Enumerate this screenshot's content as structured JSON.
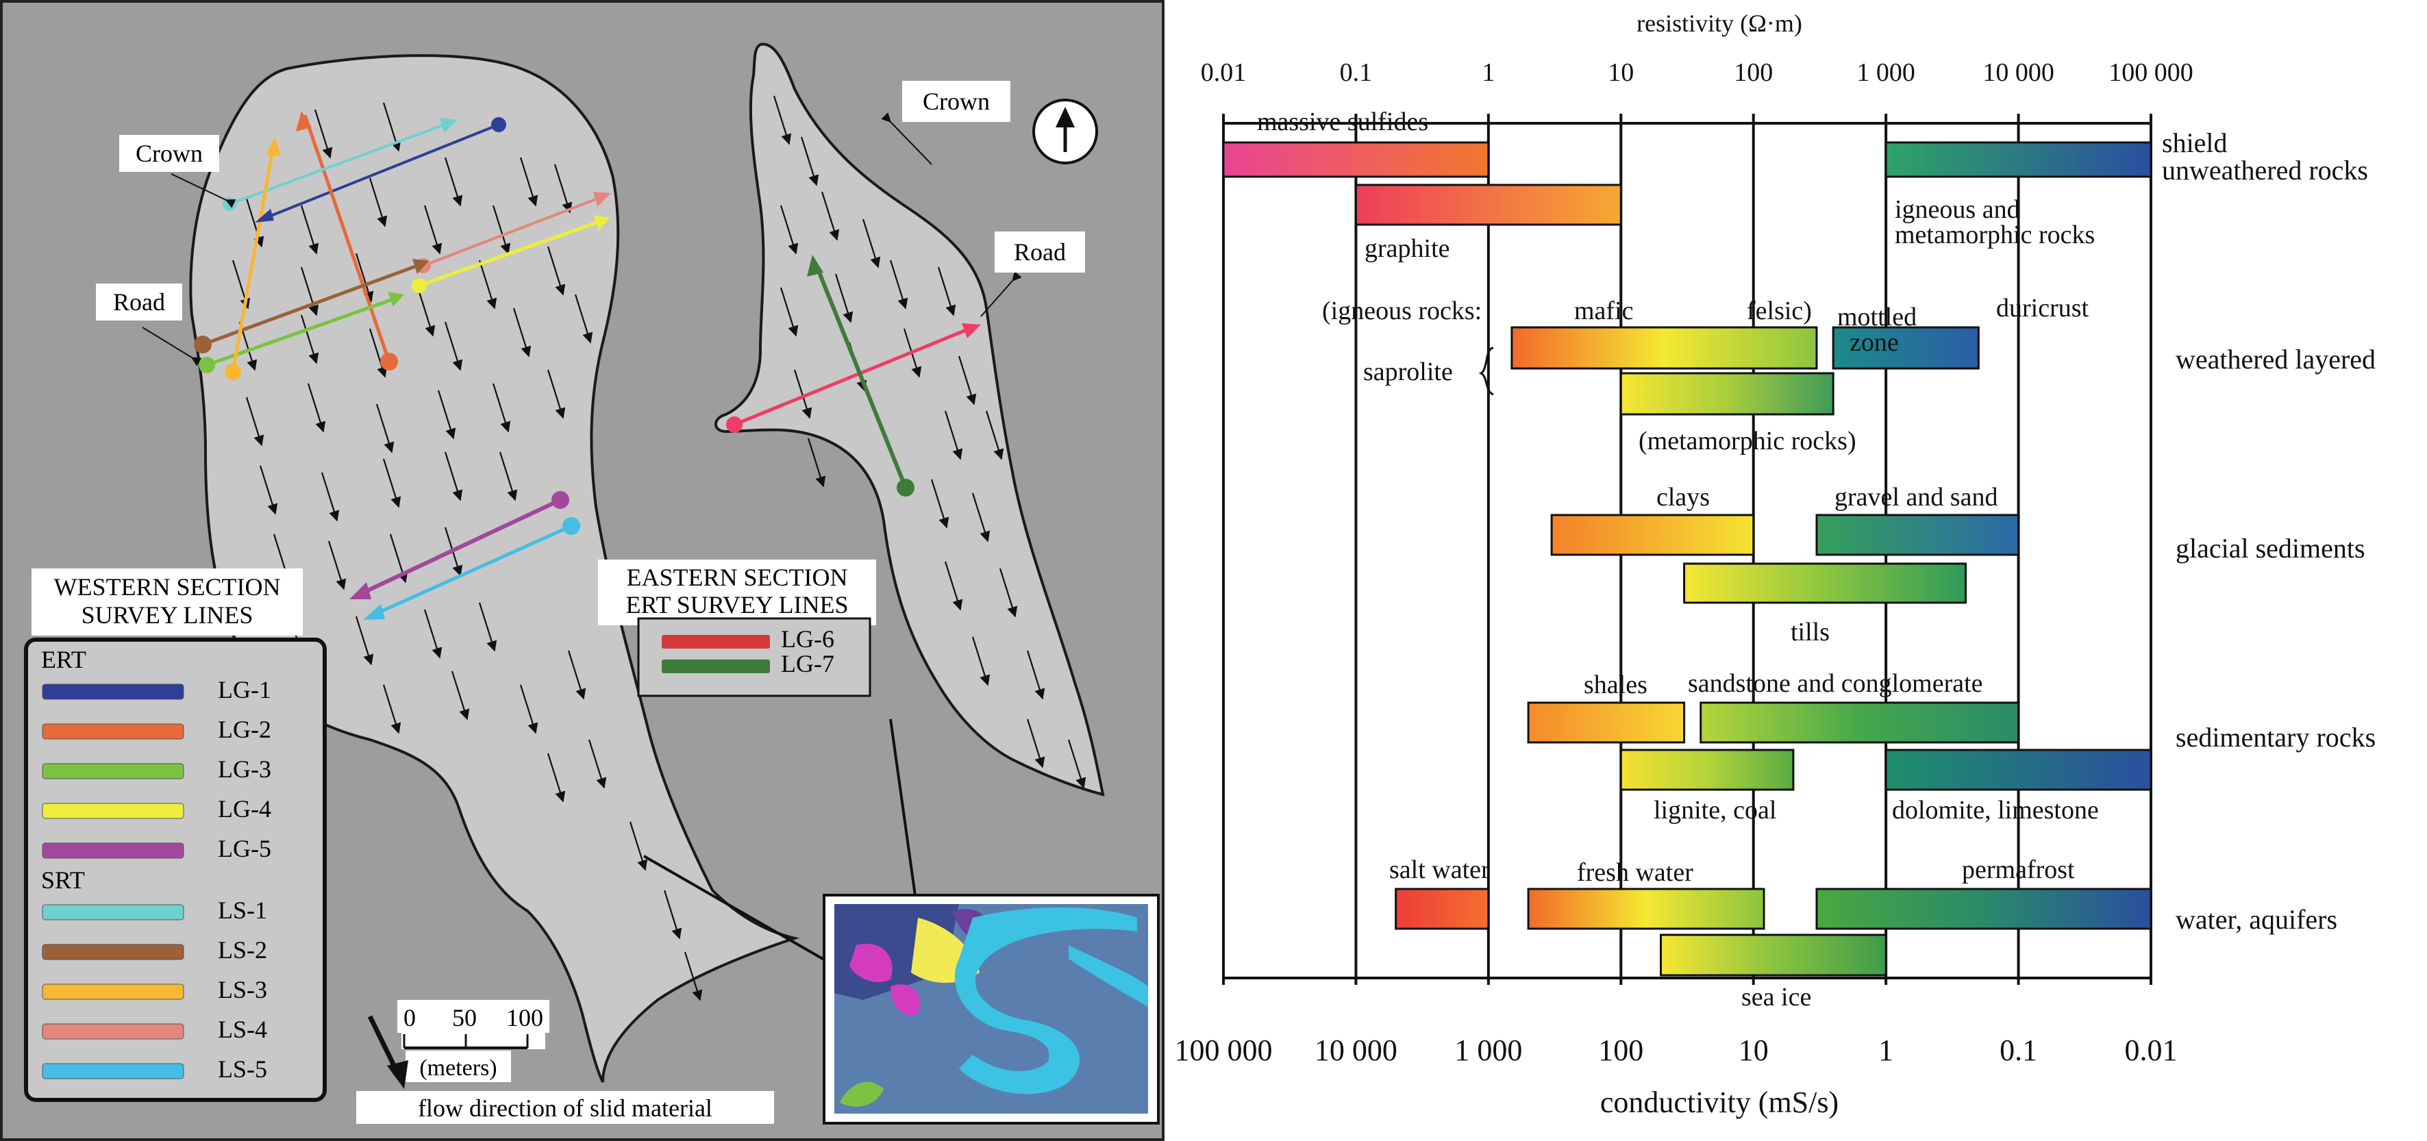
{
  "map": {
    "labels": [
      {
        "id": "crown-west",
        "text": "Crown"
      },
      {
        "id": "road-west",
        "text": "Road"
      },
      {
        "id": "crown-east",
        "text": "Crown"
      },
      {
        "id": "road-east",
        "text": "Road"
      }
    ],
    "west_legend": {
      "title_lines": [
        "WESTERN SECTION",
        "SURVEY LINES"
      ],
      "groups": [
        {
          "name": "ERT",
          "items": [
            {
              "label": "LG-1",
              "color": "#2e3f99"
            },
            {
              "label": "LG-2",
              "color": "#e8693a"
            },
            {
              "label": "LG-3",
              "color": "#7cc242"
            },
            {
              "label": "LG-4",
              "color": "#eded3c"
            },
            {
              "label": "LG-5",
              "color": "#a3479b"
            }
          ]
        },
        {
          "name": "SRT",
          "items": [
            {
              "label": "LS-1",
              "color": "#6fd0d0"
            },
            {
              "label": "LS-2",
              "color": "#9b6137"
            },
            {
              "label": "LS-3",
              "color": "#f7b733"
            },
            {
              "label": "LS-4",
              "color": "#e5867c"
            },
            {
              "label": "LS-5",
              "color": "#45bde5"
            }
          ]
        }
      ]
    },
    "east_legend": {
      "title_lines": [
        "EASTERN SECTION",
        "ERT SURVEY LINES"
      ],
      "items": [
        {
          "label": "LG-6",
          "color": "#d33a3a"
        },
        {
          "label": "LG-7",
          "color": "#3f7b3a"
        }
      ]
    },
    "scale": {
      "ticks": [
        "0",
        "50",
        "100"
      ],
      "unit": "(meters)"
    },
    "flow_label": "flow direction of slid material",
    "north_icon": "north-arrow-icon",
    "inset_icon": "location-inset-map"
  },
  "chart_data": {
    "type": "range-bar",
    "top_axis": {
      "label": "resistivity (Ω·m)",
      "ticks": [
        "0.01",
        "0.1",
        "1",
        "10",
        "100",
        "1 000",
        "10 000",
        "100 000"
      ],
      "range": [
        0.01,
        100000
      ],
      "scale": "log"
    },
    "bottom_axis": {
      "label": "conductivity (mS/s)",
      "ticks": [
        "100 000",
        "10 000",
        "1 000",
        "100",
        "10",
        "1",
        "0.1",
        "0.01"
      ],
      "range": [
        100000,
        0.01
      ],
      "scale": "log"
    },
    "categories": [
      "shield unweathered rocks",
      "weathered layered",
      "glacial sediments",
      "sedimentary rocks",
      "water, aquifers"
    ],
    "category_labels": [
      {
        "text": [
          "shield",
          "unweathered rocks"
        ]
      },
      {
        "text": [
          "weathered layered"
        ]
      },
      {
        "text": [
          "glacial sediments"
        ]
      },
      {
        "text": [
          "sedimentary rocks"
        ]
      },
      {
        "text": [
          "water, aquifers"
        ]
      }
    ],
    "bars": [
      {
        "name": "massive sulfides",
        "range": [
          0.01,
          1
        ],
        "colors": [
          "#e94592",
          "#f2762e"
        ]
      },
      {
        "name": "graphite",
        "range": [
          0.1,
          10
        ],
        "colors": [
          "#ee3d5a",
          "#f6a832"
        ]
      },
      {
        "name": "igneous and metamorphic rocks",
        "range": [
          1000,
          100000
        ],
        "colors": [
          "#2fa366",
          "#2a4fa0"
        ]
      },
      {
        "name": "saprolite (igneous rocks: mafic, felsic)",
        "range": [
          1.5,
          300
        ],
        "colors": [
          "#f26a2b",
          "#f5e833",
          "#8bc43f"
        ]
      },
      {
        "name": "saprolite (metamorphic rocks)",
        "range": [
          10,
          400
        ],
        "colors": [
          "#f7e733",
          "#a9cd3b",
          "#3f9b5b"
        ]
      },
      {
        "name": "mottled zone / duricrust",
        "range": [
          400,
          5000
        ],
        "colors": [
          "#1e8a8a",
          "#2a5ea6"
        ]
      },
      {
        "name": "clays",
        "range": [
          3,
          100
        ],
        "colors": [
          "#f5812b",
          "#f5e333"
        ]
      },
      {
        "name": "gravel and sand",
        "range": [
          300,
          10000
        ],
        "colors": [
          "#36a05a",
          "#2a6aa8"
        ]
      },
      {
        "name": "tills",
        "range": [
          30,
          4000
        ],
        "colors": [
          "#f7e733",
          "#8cc63f",
          "#2e9a5a"
        ]
      },
      {
        "name": "shales",
        "range": [
          2,
          30
        ],
        "colors": [
          "#f58a2b",
          "#f6d733"
        ]
      },
      {
        "name": "sandstone and conglomerate",
        "range": [
          40,
          10000
        ],
        "colors": [
          "#b7d53b",
          "#45a84b",
          "#2a8a6a"
        ]
      },
      {
        "name": "lignite, coal",
        "range": [
          10,
          200
        ],
        "colors": [
          "#f6e033",
          "#b5d33a",
          "#5aab44"
        ]
      },
      {
        "name": "dolomite, limestone",
        "range": [
          1000,
          100000
        ],
        "colors": [
          "#1f8f6a",
          "#2a4f9f"
        ]
      },
      {
        "name": "salt water",
        "range": [
          0.2,
          1
        ],
        "colors": [
          "#ee3d3a",
          "#f36f2e"
        ]
      },
      {
        "name": "fresh water",
        "range": [
          2,
          120
        ],
        "colors": [
          "#f26a2b",
          "#f5e833",
          "#8bc43f"
        ]
      },
      {
        "name": "permafrost",
        "range": [
          300,
          100000
        ],
        "colors": [
          "#4aa840",
          "#2a8a6a",
          "#2a4f9f"
        ]
      },
      {
        "name": "sea ice",
        "range": [
          20,
          1000
        ],
        "colors": [
          "#f7e733",
          "#8bc43f",
          "#3f9b4b"
        ]
      }
    ],
    "texts": {
      "massive_sulfides": "massive sulfides",
      "graphite": "graphite",
      "igneous_meta_1": "igneous and",
      "igneous_meta_2": "metamorphic rocks",
      "igneous_rocks": "(igneous rocks:",
      "mafic": "mafic",
      "felsic": "felsic)",
      "mottled": "mottled",
      "zone": "zone",
      "duricrust": "duricrust",
      "saprolite": "saprolite",
      "metamorphic_rocks": "(metamorphic rocks)",
      "clays": "clays",
      "gravel": "gravel and sand",
      "tills": "tills",
      "shales": "shales",
      "sandstone": "sandstone and conglomerate",
      "lignite": "lignite, coal",
      "dolomite": "dolomite, limestone",
      "salt_water": "salt water",
      "fresh_water": "fresh water",
      "permafrost": "permafrost",
      "sea_ice": "sea ice"
    }
  }
}
